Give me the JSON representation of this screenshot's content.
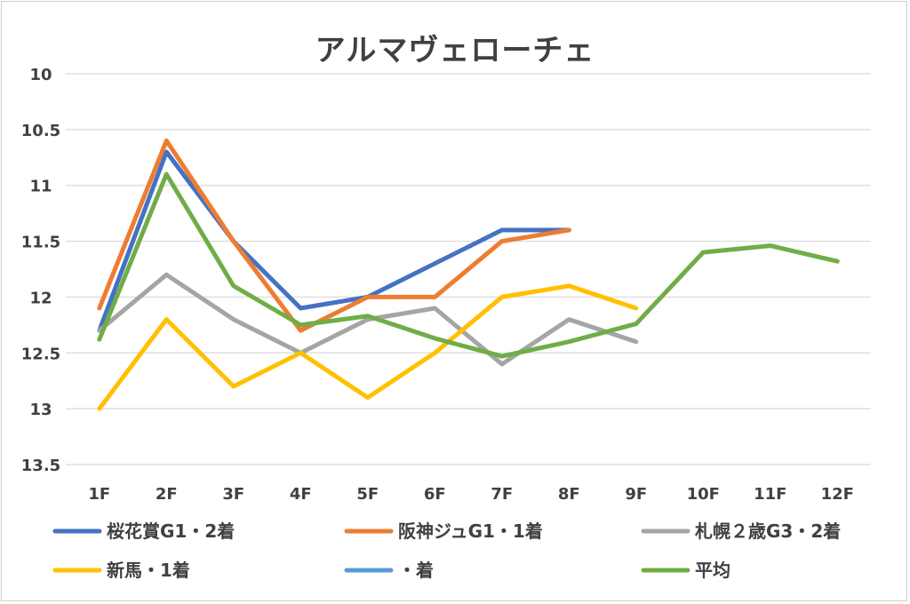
{
  "chart_data": {
    "type": "line",
    "title": "アルマヴェローチェ",
    "categories": [
      "1F",
      "2F",
      "3F",
      "4F",
      "5F",
      "6F",
      "7F",
      "8F",
      "9F",
      "10F",
      "11F",
      "12F"
    ],
    "ylim": [
      13.5,
      10
    ],
    "y_reversed": true,
    "yticks": [
      "10",
      "10.5",
      "11",
      "11.5",
      "12",
      "12.5",
      "13",
      "13.5"
    ],
    "grid": true,
    "legend_position": "bottom",
    "series": [
      {
        "name": "桜花賞G1・2着",
        "color": "#4472C4",
        "values": [
          12.3,
          10.7,
          11.5,
          12.1,
          12.0,
          11.7,
          11.4,
          11.4,
          null,
          null,
          null,
          null
        ]
      },
      {
        "name": "阪神ジュG1・1着",
        "color": "#ED7D31",
        "values": [
          12.1,
          10.6,
          11.5,
          12.3,
          12.0,
          12.0,
          11.5,
          11.4,
          null,
          null,
          null,
          null
        ]
      },
      {
        "name": "札幌２歳G3・2着",
        "color": "#A5A5A5",
        "values": [
          12.3,
          11.8,
          12.2,
          12.5,
          12.2,
          12.1,
          12.6,
          12.2,
          12.4,
          null,
          null,
          null
        ]
      },
      {
        "name": "新馬・1着",
        "color": "#FFC000",
        "values": [
          13.0,
          12.2,
          12.8,
          12.5,
          12.9,
          12.5,
          12.0,
          11.9,
          12.1,
          null,
          null,
          null
        ]
      },
      {
        "name": "・着",
        "color": "#5B9BD5",
        "values": [
          null,
          null,
          null,
          null,
          null,
          null,
          null,
          null,
          null,
          null,
          null,
          null
        ]
      },
      {
        "name": "平均",
        "color": "#70AD47",
        "values": [
          12.38,
          10.9,
          11.9,
          12.25,
          12.17,
          12.37,
          12.53,
          12.4,
          12.24,
          11.6,
          11.54,
          11.68
        ]
      }
    ]
  }
}
